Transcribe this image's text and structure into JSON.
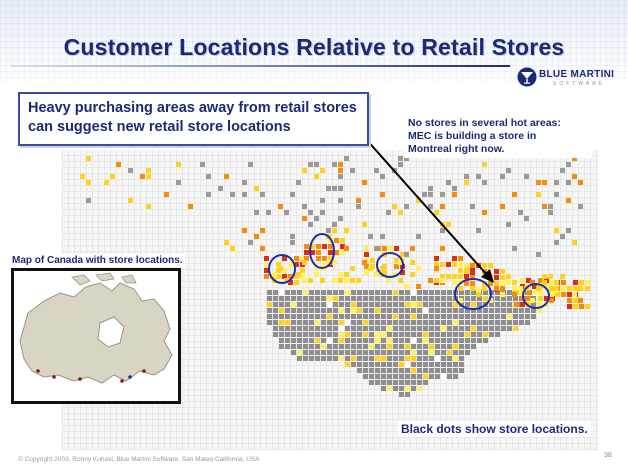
{
  "slide": {
    "title": "Customer Locations Relative to Retail Stores",
    "callout": "Heavy purchasing areas away from retail stores can suggest new retail store locations",
    "note_lines": [
      "No stores in several hot areas:",
      "MEC is building a store in",
      "Montreal right now."
    ],
    "canada_map_label": "Map of Canada with store locations.",
    "store_dots_label": "Black dots show store locations.",
    "copyright": "© Copyright 2003, Ronny Kohavi, Blue Martini Software. San Mateo California, USA",
    "page_number": "38"
  },
  "logo": {
    "name": "BLUE MARTINI",
    "sub": "SOFTWARE"
  },
  "colors": {
    "title": "#1a2a78",
    "circle": "#1b2db3",
    "heat_hot": "#e02b17",
    "heat_mid": "#f58d0c",
    "heat_warm": "#ffd21c",
    "heat_low": "#fff15a",
    "land_gray": "#8e8e8e"
  },
  "icons": {
    "logo_mark": "martini-glass-icon",
    "arrow": "arrow-icon"
  }
}
